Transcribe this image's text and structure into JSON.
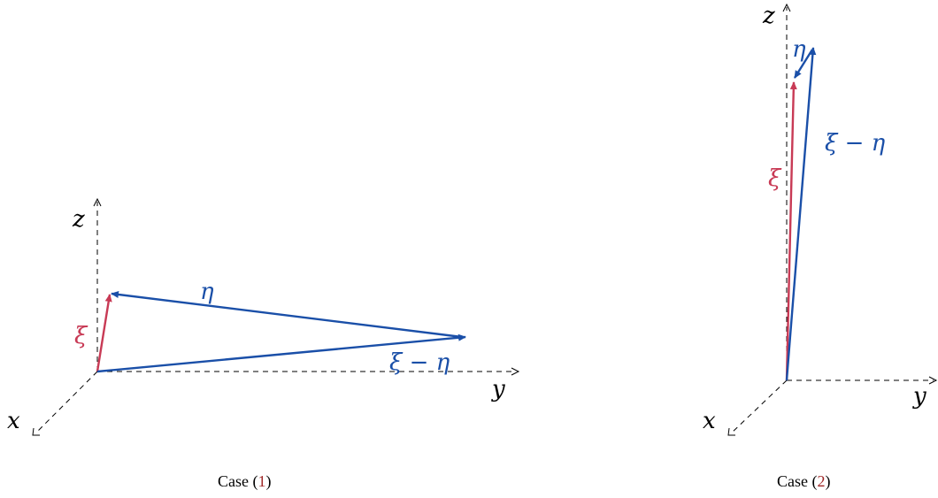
{
  "colors": {
    "xi": "#c83a55",
    "eta": "#1a4fa8",
    "axis": "#000000",
    "ref": "#a02828"
  },
  "axes": {
    "x": "x",
    "y": "y",
    "z": "z"
  },
  "vectors": {
    "xi": "ξ",
    "eta": "η",
    "xi_minus_eta": "ξ − η"
  },
  "captions": [
    {
      "prefix": "Case (",
      "ref": "1",
      "suffix": ")"
    },
    {
      "prefix": "Case (",
      "ref": "2",
      "suffix": ")"
    }
  ]
}
